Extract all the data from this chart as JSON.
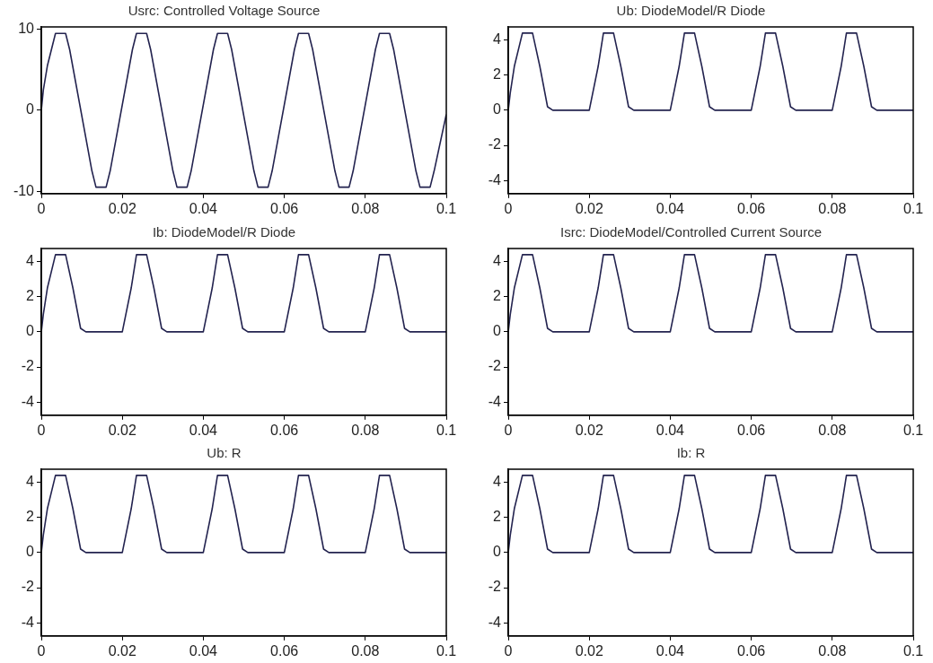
{
  "chart_data": [
    {
      "type": "line",
      "title": "Usrc: Controlled Voltage Source",
      "color": "#23234f",
      "grid": false,
      "marker": "none",
      "xlim": [
        0,
        0.1
      ],
      "xticks": [
        0,
        0.02,
        0.04,
        0.06,
        0.08,
        0.1
      ],
      "ylim": [
        -10.3,
        10.3
      ],
      "yticks": [
        -10,
        0,
        10
      ],
      "x": [
        0,
        0.0005,
        0.0015,
        0.0025,
        0.0035,
        0.006,
        0.007,
        0.0125,
        0.0135,
        0.016,
        0.017,
        0.0225,
        0.0235,
        0.026,
        0.027,
        0.0325,
        0.0335,
        0.036,
        0.037,
        0.0425,
        0.0435,
        0.046,
        0.047,
        0.0525,
        0.0535,
        0.056,
        0.057,
        0.0625,
        0.0635,
        0.066,
        0.067,
        0.0725,
        0.0735,
        0.076,
        0.077,
        0.0825,
        0.0835,
        0.086,
        0.087,
        0.0925,
        0.0935,
        0.096,
        0.097,
        0.1
      ],
      "values": [
        0,
        2.5,
        5.5,
        7.5,
        9.5,
        9.5,
        7.5,
        -7.5,
        -9.5,
        -9.5,
        -7.5,
        7.5,
        9.5,
        9.5,
        7.5,
        -7.5,
        -9.5,
        -9.5,
        -7.5,
        7.5,
        9.5,
        9.5,
        7.5,
        -7.5,
        -9.5,
        -9.5,
        -7.5,
        7.5,
        9.5,
        9.5,
        7.5,
        -7.5,
        -9.5,
        -9.5,
        -7.5,
        7.5,
        9.5,
        9.5,
        7.5,
        -7.5,
        -9.5,
        -9.5,
        -7.5,
        -0.5
      ]
    },
    {
      "type": "line",
      "title": "Ub: DiodeModel/R Diode",
      "color": "#23234f",
      "grid": false,
      "marker": "none",
      "xlim": [
        0,
        0.1
      ],
      "xticks": [
        0,
        0.02,
        0.04,
        0.06,
        0.08,
        0.1
      ],
      "ylim": [
        -4.75,
        4.75
      ],
      "yticks": [
        -4,
        -2,
        0,
        2,
        4
      ],
      "x": [
        0,
        0.0005,
        0.0015,
        0.0035,
        0.006,
        0.0078,
        0.0097,
        0.011,
        0.02,
        0.0222,
        0.0235,
        0.026,
        0.0278,
        0.0297,
        0.031,
        0.04,
        0.0422,
        0.0435,
        0.046,
        0.0478,
        0.0497,
        0.051,
        0.06,
        0.0622,
        0.0635,
        0.066,
        0.0678,
        0.0697,
        0.071,
        0.08,
        0.0822,
        0.0835,
        0.086,
        0.0878,
        0.0897,
        0.091,
        0.1
      ],
      "values": [
        0,
        1,
        2.5,
        4.4,
        4.4,
        2.5,
        0.2,
        0,
        0,
        2.5,
        4.4,
        4.4,
        2.5,
        0.2,
        0,
        0,
        2.5,
        4.4,
        4.4,
        2.5,
        0.2,
        0,
        0,
        2.5,
        4.4,
        4.4,
        2.5,
        0.2,
        0,
        0,
        2.5,
        4.4,
        4.4,
        2.5,
        0.2,
        0,
        0
      ]
    },
    {
      "type": "line",
      "title": "Ib: DiodeModel/R Diode",
      "color": "#23234f",
      "grid": false,
      "marker": "none",
      "xlim": [
        0,
        0.1
      ],
      "xticks": [
        0,
        0.02,
        0.04,
        0.06,
        0.08,
        0.1
      ],
      "ylim": [
        -4.75,
        4.75
      ],
      "yticks": [
        -4,
        -2,
        0,
        2,
        4
      ],
      "x": [
        0,
        0.0005,
        0.0015,
        0.0035,
        0.006,
        0.0078,
        0.0097,
        0.011,
        0.02,
        0.0222,
        0.0235,
        0.026,
        0.0278,
        0.0297,
        0.031,
        0.04,
        0.0422,
        0.0435,
        0.046,
        0.0478,
        0.0497,
        0.051,
        0.06,
        0.0622,
        0.0635,
        0.066,
        0.0678,
        0.0697,
        0.071,
        0.08,
        0.0822,
        0.0835,
        0.086,
        0.0878,
        0.0897,
        0.091,
        0.1
      ],
      "values": [
        0,
        1,
        2.5,
        4.4,
        4.4,
        2.5,
        0.2,
        0,
        0,
        2.5,
        4.4,
        4.4,
        2.5,
        0.2,
        0,
        0,
        2.5,
        4.4,
        4.4,
        2.5,
        0.2,
        0,
        0,
        2.5,
        4.4,
        4.4,
        2.5,
        0.2,
        0,
        0,
        2.5,
        4.4,
        4.4,
        2.5,
        0.2,
        0,
        0
      ]
    },
    {
      "type": "line",
      "title": "Isrc: DiodeModel/Controlled Current Source",
      "color": "#23234f",
      "grid": false,
      "marker": "none",
      "xlim": [
        0,
        0.1
      ],
      "xticks": [
        0,
        0.02,
        0.04,
        0.06,
        0.08,
        0.1
      ],
      "ylim": [
        -4.75,
        4.75
      ],
      "yticks": [
        -4,
        -2,
        0,
        2,
        4
      ],
      "x": [
        0,
        0.0005,
        0.0015,
        0.0035,
        0.006,
        0.0078,
        0.0097,
        0.011,
        0.02,
        0.0222,
        0.0235,
        0.026,
        0.0278,
        0.0297,
        0.031,
        0.04,
        0.0422,
        0.0435,
        0.046,
        0.0478,
        0.0497,
        0.051,
        0.06,
        0.0622,
        0.0635,
        0.066,
        0.0678,
        0.0697,
        0.071,
        0.08,
        0.0822,
        0.0835,
        0.086,
        0.0878,
        0.0897,
        0.091,
        0.1
      ],
      "values": [
        0,
        1,
        2.5,
        4.4,
        4.4,
        2.5,
        0.2,
        0,
        0,
        2.5,
        4.4,
        4.4,
        2.5,
        0.2,
        0,
        0,
        2.5,
        4.4,
        4.4,
        2.5,
        0.2,
        0,
        0,
        2.5,
        4.4,
        4.4,
        2.5,
        0.2,
        0,
        0,
        2.5,
        4.4,
        4.4,
        2.5,
        0.2,
        0,
        0
      ]
    },
    {
      "type": "line",
      "title": "Ub: R",
      "color": "#23234f",
      "grid": false,
      "marker": "none",
      "xlim": [
        0,
        0.1
      ],
      "xticks": [
        0,
        0.02,
        0.04,
        0.06,
        0.08,
        0.1
      ],
      "ylim": [
        -4.75,
        4.75
      ],
      "yticks": [
        -4,
        -2,
        0,
        2,
        4
      ],
      "x": [
        0,
        0.0005,
        0.0015,
        0.0035,
        0.006,
        0.0078,
        0.0097,
        0.011,
        0.02,
        0.0222,
        0.0235,
        0.026,
        0.0278,
        0.0297,
        0.031,
        0.04,
        0.0422,
        0.0435,
        0.046,
        0.0478,
        0.0497,
        0.051,
        0.06,
        0.0622,
        0.0635,
        0.066,
        0.0678,
        0.0697,
        0.071,
        0.08,
        0.0822,
        0.0835,
        0.086,
        0.0878,
        0.0897,
        0.091,
        0.1
      ],
      "values": [
        0,
        1,
        2.5,
        4.4,
        4.4,
        2.5,
        0.2,
        0,
        0,
        2.5,
        4.4,
        4.4,
        2.5,
        0.2,
        0,
        0,
        2.5,
        4.4,
        4.4,
        2.5,
        0.2,
        0,
        0,
        2.5,
        4.4,
        4.4,
        2.5,
        0.2,
        0,
        0,
        2.5,
        4.4,
        4.4,
        2.5,
        0.2,
        0,
        0
      ]
    },
    {
      "type": "line",
      "title": "Ib: R",
      "color": "#23234f",
      "grid": false,
      "marker": "none",
      "xlim": [
        0,
        0.1
      ],
      "xticks": [
        0,
        0.02,
        0.04,
        0.06,
        0.08,
        0.1
      ],
      "ylim": [
        -4.75,
        4.75
      ],
      "yticks": [
        -4,
        -2,
        0,
        2,
        4
      ],
      "x": [
        0,
        0.0005,
        0.0015,
        0.0035,
        0.006,
        0.0078,
        0.0097,
        0.011,
        0.02,
        0.0222,
        0.0235,
        0.026,
        0.0278,
        0.0297,
        0.031,
        0.04,
        0.0422,
        0.0435,
        0.046,
        0.0478,
        0.0497,
        0.051,
        0.06,
        0.0622,
        0.0635,
        0.066,
        0.0678,
        0.0697,
        0.071,
        0.08,
        0.0822,
        0.0835,
        0.086,
        0.0878,
        0.0897,
        0.091,
        0.1
      ],
      "values": [
        0,
        1,
        2.5,
        4.4,
        4.4,
        2.5,
        0.2,
        0,
        0,
        2.5,
        4.4,
        4.4,
        2.5,
        0.2,
        0,
        0,
        2.5,
        4.4,
        4.4,
        2.5,
        0.2,
        0,
        0,
        2.5,
        4.4,
        4.4,
        2.5,
        0.2,
        0,
        0,
        2.5,
        4.4,
        4.4,
        2.5,
        0.2,
        0,
        0
      ]
    }
  ]
}
